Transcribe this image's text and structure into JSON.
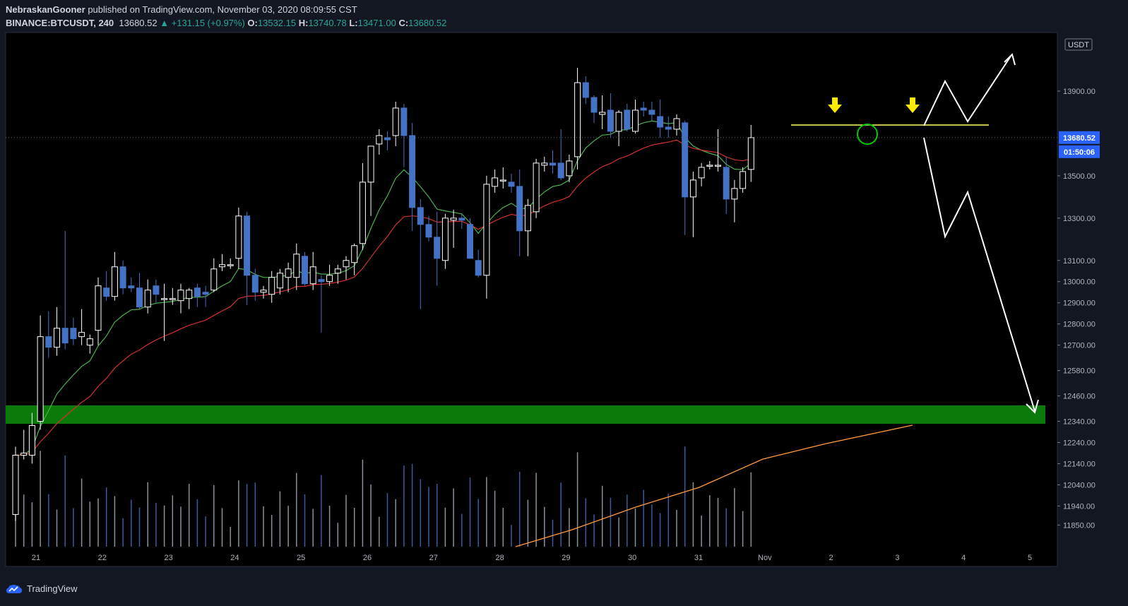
{
  "header": {
    "publisher": "NebraskanGooner",
    "published_text": " published on TradingView.com, November 03, 2020 08:09:55 CST",
    "symbol": "BINANCE:BTCUSDT, 240",
    "last": "13680.52",
    "change": "▲ +131.15 (+0.97%)",
    "o_label": "O:",
    "o_val": "13532.15",
    "h_label": "H:",
    "h_val": "13740.78",
    "l_label": "L:",
    "l_val": "13471.00",
    "c_label": "C:",
    "c_val": "13680.52"
  },
  "price_axis": {
    "currency": "USDT",
    "ticks": [
      "13900.00",
      "13500.00",
      "13300.00",
      "13100.00",
      "13000.00",
      "12900.00",
      "12800.00",
      "12700.00",
      "12580.00",
      "12460.00",
      "12340.00",
      "12240.00",
      "12140.00",
      "12040.00",
      "11940.00",
      "11850.00"
    ],
    "last_price": "13680.52",
    "countdown": "01:50:06"
  },
  "time_axis": {
    "labels": [
      "21",
      "22",
      "23",
      "24",
      "25",
      "26",
      "27",
      "28",
      "29",
      "30",
      "31",
      "Nov",
      "2",
      "3",
      "4",
      "5"
    ]
  },
  "footer": {
    "brand": "TradingView"
  },
  "colors": {
    "background": "#131722",
    "chart_bg": "#000000",
    "up_candle": "#ffffff",
    "down_candle": "#4472c4",
    "ema_fast": "#4caf50",
    "ema_slow": "#d32f2f",
    "volume_ma": "#ff9a3c",
    "support_zone": "#0a7a0a",
    "resistance_line": "#ffff66",
    "arrow_marker": "#ffeb00",
    "price_label": "#2962ff"
  },
  "chart_data": {
    "type": "candlestick",
    "interval": "240",
    "y_range": [
      11850,
      14080
    ],
    "candles": [
      {
        "o": 11900,
        "h": 12220,
        "l": 11870,
        "c": 12180
      },
      {
        "o": 12180,
        "h": 12300,
        "l": 12160,
        "c": 12190
      },
      {
        "o": 12180,
        "h": 12380,
        "l": 12140,
        "c": 12320
      },
      {
        "o": 12340,
        "h": 12840,
        "l": 12300,
        "c": 12740
      },
      {
        "o": 12740,
        "h": 12860,
        "l": 12640,
        "c": 12690
      },
      {
        "o": 12690,
        "h": 12880,
        "l": 12650,
        "c": 12780
      },
      {
        "o": 12780,
        "h": 13240,
        "l": 12680,
        "c": 12710
      },
      {
        "o": 12780,
        "h": 12830,
        "l": 12700,
        "c": 12730
      },
      {
        "o": 12740,
        "h": 12870,
        "l": 12700,
        "c": 12760
      },
      {
        "o": 12700,
        "h": 12750,
        "l": 12660,
        "c": 12730
      },
      {
        "o": 12770,
        "h": 13020,
        "l": 12700,
        "c": 12980
      },
      {
        "o": 12970,
        "h": 13050,
        "l": 12910,
        "c": 12930
      },
      {
        "o": 12930,
        "h": 13140,
        "l": 12910,
        "c": 13070
      },
      {
        "o": 13070,
        "h": 13100,
        "l": 12940,
        "c": 12970
      },
      {
        "o": 12980,
        "h": 13020,
        "l": 12950,
        "c": 12970
      },
      {
        "o": 12970,
        "h": 13040,
        "l": 12870,
        "c": 12880
      },
      {
        "o": 12880,
        "h": 13010,
        "l": 12850,
        "c": 12960
      },
      {
        "o": 12980,
        "h": 13010,
        "l": 12900,
        "c": 12940
      },
      {
        "o": 12920,
        "h": 12990,
        "l": 12720,
        "c": 12920
      },
      {
        "o": 12920,
        "h": 12970,
        "l": 12890,
        "c": 12920
      },
      {
        "o": 12910,
        "h": 12990,
        "l": 12850,
        "c": 12960
      },
      {
        "o": 12920,
        "h": 12970,
        "l": 12870,
        "c": 12960
      },
      {
        "o": 12970,
        "h": 12990,
        "l": 12880,
        "c": 12930
      },
      {
        "o": 12950,
        "h": 12980,
        "l": 12880,
        "c": 12940
      },
      {
        "o": 12960,
        "h": 13110,
        "l": 12950,
        "c": 13060
      },
      {
        "o": 13070,
        "h": 13130,
        "l": 13050,
        "c": 13080
      },
      {
        "o": 13080,
        "h": 13110,
        "l": 13060,
        "c": 13080
      },
      {
        "o": 13110,
        "h": 13350,
        "l": 13060,
        "c": 13310
      },
      {
        "o": 13310,
        "h": 13330,
        "l": 12890,
        "c": 13030
      },
      {
        "o": 13030,
        "h": 13060,
        "l": 12910,
        "c": 12950
      },
      {
        "o": 12950,
        "h": 12980,
        "l": 12920,
        "c": 12960
      },
      {
        "o": 12940,
        "h": 13050,
        "l": 12900,
        "c": 13020
      },
      {
        "o": 12970,
        "h": 13060,
        "l": 12940,
        "c": 13040
      },
      {
        "o": 13020,
        "h": 13090,
        "l": 12950,
        "c": 13060
      },
      {
        "o": 13020,
        "h": 13180,
        "l": 12960,
        "c": 13130
      },
      {
        "o": 13120,
        "h": 13140,
        "l": 12980,
        "c": 12990
      },
      {
        "o": 12990,
        "h": 13140,
        "l": 12960,
        "c": 13070
      },
      {
        "o": 13010,
        "h": 13030,
        "l": 12760,
        "c": 13000
      },
      {
        "o": 13000,
        "h": 13080,
        "l": 12980,
        "c": 13030
      },
      {
        "o": 13040,
        "h": 13080,
        "l": 12990,
        "c": 13060
      },
      {
        "o": 13070,
        "h": 13120,
        "l": 13010,
        "c": 13100
      },
      {
        "o": 13090,
        "h": 13180,
        "l": 13030,
        "c": 13170
      },
      {
        "o": 13180,
        "h": 13560,
        "l": 13150,
        "c": 13470
      },
      {
        "o": 13470,
        "h": 13620,
        "l": 13310,
        "c": 13640
      },
      {
        "o": 13650,
        "h": 13720,
        "l": 13600,
        "c": 13690
      },
      {
        "o": 13680,
        "h": 13710,
        "l": 13620,
        "c": 13670
      },
      {
        "o": 13690,
        "h": 13850,
        "l": 13640,
        "c": 13820
      },
      {
        "o": 13820,
        "h": 13840,
        "l": 13540,
        "c": 13690
      },
      {
        "o": 13690,
        "h": 13750,
        "l": 13240,
        "c": 13350
      },
      {
        "o": 13350,
        "h": 13390,
        "l": 12870,
        "c": 13270
      },
      {
        "o": 13270,
        "h": 13310,
        "l": 13190,
        "c": 13210
      },
      {
        "o": 13210,
        "h": 13330,
        "l": 12980,
        "c": 13110
      },
      {
        "o": 13100,
        "h": 13320,
        "l": 13060,
        "c": 13300
      },
      {
        "o": 13290,
        "h": 13340,
        "l": 13160,
        "c": 13300
      },
      {
        "o": 13300,
        "h": 13320,
        "l": 13250,
        "c": 13290
      },
      {
        "o": 13270,
        "h": 13300,
        "l": 13110,
        "c": 13110
      },
      {
        "o": 13100,
        "h": 13150,
        "l": 13020,
        "c": 13030
      },
      {
        "o": 13030,
        "h": 13500,
        "l": 12920,
        "c": 13460
      },
      {
        "o": 13450,
        "h": 13530,
        "l": 13420,
        "c": 13490
      },
      {
        "o": 13480,
        "h": 13540,
        "l": 13440,
        "c": 13480
      },
      {
        "o": 13470,
        "h": 13510,
        "l": 13420,
        "c": 13450
      },
      {
        "o": 13450,
        "h": 13530,
        "l": 13120,
        "c": 13240
      },
      {
        "o": 13240,
        "h": 13390,
        "l": 13120,
        "c": 13360
      },
      {
        "o": 13330,
        "h": 13580,
        "l": 13300,
        "c": 13560
      },
      {
        "o": 13550,
        "h": 13590,
        "l": 13520,
        "c": 13560
      },
      {
        "o": 13560,
        "h": 13620,
        "l": 13510,
        "c": 13550
      },
      {
        "o": 13560,
        "h": 13720,
        "l": 13480,
        "c": 13490
      },
      {
        "o": 13500,
        "h": 13600,
        "l": 13470,
        "c": 13570
      },
      {
        "o": 13590,
        "h": 14010,
        "l": 13530,
        "c": 13940
      },
      {
        "o": 13940,
        "h": 13970,
        "l": 13840,
        "c": 13870
      },
      {
        "o": 13870,
        "h": 13880,
        "l": 13750,
        "c": 13800
      },
      {
        "o": 13790,
        "h": 13880,
        "l": 13720,
        "c": 13800
      },
      {
        "o": 13810,
        "h": 13890,
        "l": 13680,
        "c": 13710
      },
      {
        "o": 13710,
        "h": 13810,
        "l": 13640,
        "c": 13800
      },
      {
        "o": 13810,
        "h": 13840,
        "l": 13710,
        "c": 13720
      },
      {
        "o": 13710,
        "h": 13860,
        "l": 13700,
        "c": 13810
      },
      {
        "o": 13820,
        "h": 13850,
        "l": 13780,
        "c": 13810
      },
      {
        "o": 13810,
        "h": 13850,
        "l": 13760,
        "c": 13790
      },
      {
        "o": 13780,
        "h": 13860,
        "l": 13680,
        "c": 13730
      },
      {
        "o": 13730,
        "h": 13780,
        "l": 13680,
        "c": 13720
      },
      {
        "o": 13720,
        "h": 13790,
        "l": 13690,
        "c": 13770
      },
      {
        "o": 13750,
        "h": 13760,
        "l": 13220,
        "c": 13400
      },
      {
        "o": 13400,
        "h": 13520,
        "l": 13210,
        "c": 13480
      },
      {
        "o": 13490,
        "h": 13560,
        "l": 13450,
        "c": 13540
      },
      {
        "o": 13550,
        "h": 13570,
        "l": 13530,
        "c": 13550
      },
      {
        "o": 13550,
        "h": 13720,
        "l": 13520,
        "c": 13550
      },
      {
        "o": 13540,
        "h": 13590,
        "l": 13320,
        "c": 13390
      },
      {
        "o": 13390,
        "h": 13480,
        "l": 13280,
        "c": 13440
      },
      {
        "o": 13440,
        "h": 13540,
        "l": 13420,
        "c": 13520
      },
      {
        "o": 13530,
        "h": 13740,
        "l": 13471,
        "c": 13680
      }
    ],
    "annotations": {
      "resistance_level": 13740,
      "support_zone": [
        12350,
        12430
      ]
    }
  }
}
